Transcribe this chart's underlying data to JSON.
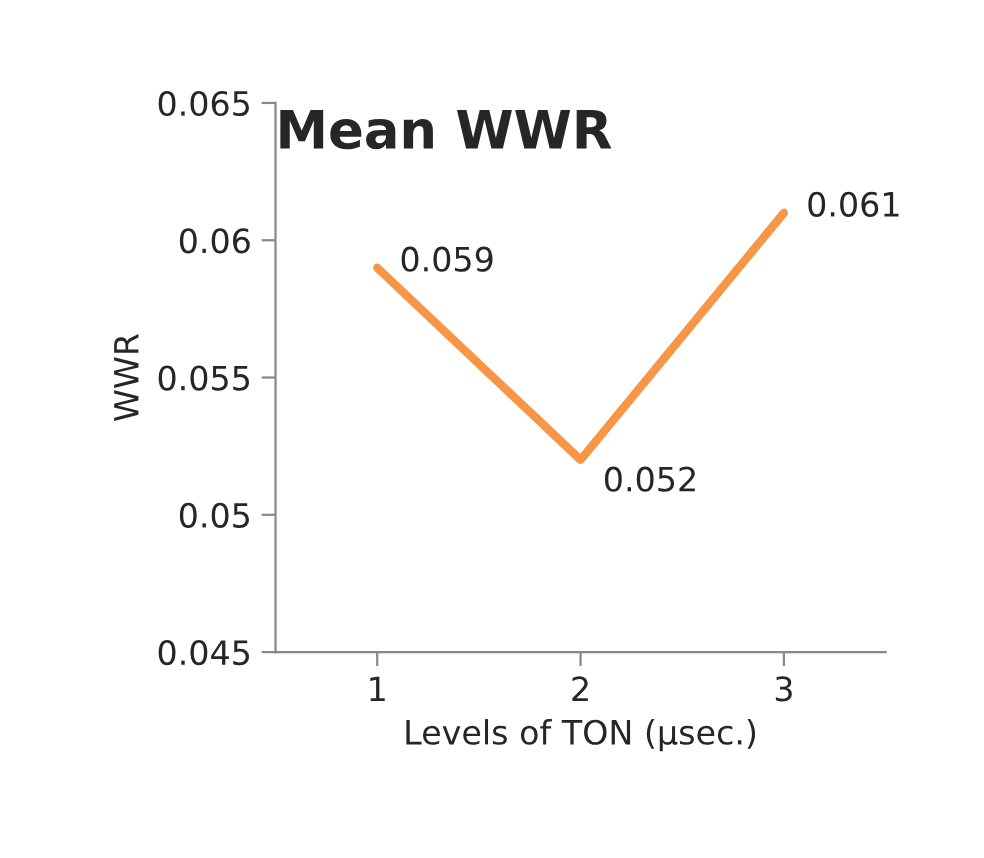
{
  "chart_data": {
    "type": "line",
    "title": "Mean WWR",
    "xlabel": "Levels of TON (µsec.)",
    "ylabel": "WWR",
    "categories": [
      "1",
      "2",
      "3"
    ],
    "series": [
      {
        "color": "#f79646",
        "values": [
          0.059,
          0.052,
          0.061
        ]
      }
    ],
    "ylim": [
      0.045,
      0.065
    ],
    "yticks": [
      0.045,
      0.05,
      0.055,
      0.06,
      0.065
    ],
    "data_labels": true,
    "grid": false,
    "legend": false,
    "marker": "none",
    "line_style": "solid"
  }
}
